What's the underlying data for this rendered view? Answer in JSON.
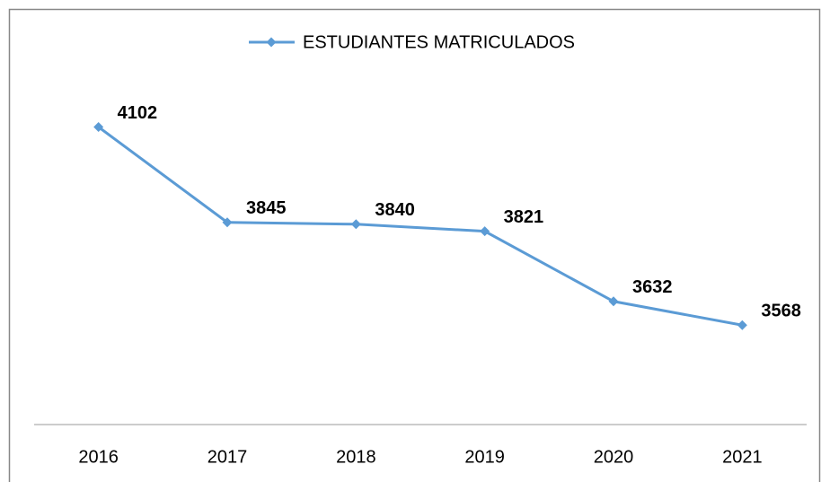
{
  "chart_data": {
    "type": "line",
    "categories": [
      "2016",
      "2017",
      "2018",
      "2019",
      "2020",
      "2021"
    ],
    "series": [
      {
        "name": "ESTUDIANTES MATRICULADOS",
        "color": "#5b9bd5",
        "values": [
          4102,
          3845,
          3840,
          3821,
          3632,
          3568
        ]
      }
    ],
    "ylim": [
      3300,
      4200
    ],
    "legend": "top",
    "data_labels": true
  }
}
